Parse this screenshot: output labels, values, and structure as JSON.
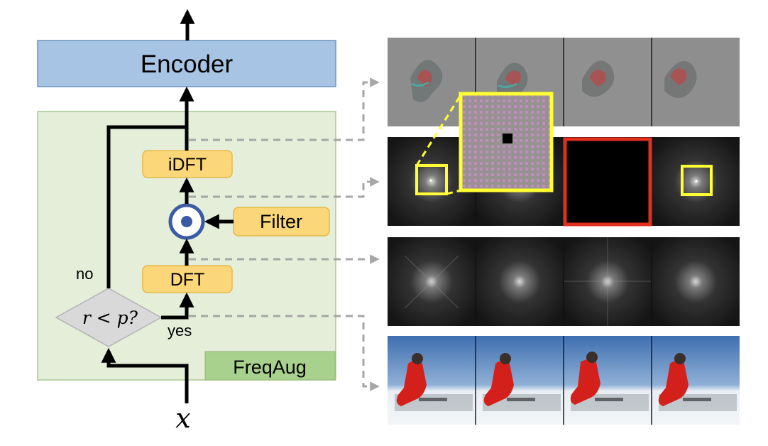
{
  "labels": {
    "encoder": "Encoder",
    "freqaug": "FreqAug",
    "idft": "iDFT",
    "dft": "DFT",
    "filter": "Filter",
    "condition": "r < p?",
    "no": "no",
    "yes": "yes",
    "input": "x"
  },
  "colors": {
    "encoder_fill": "#a7c4e4",
    "encoder_stroke": "#6f93bf",
    "freqaug_fill": "#e4eed9",
    "freqaug_stroke": "#a9c98d",
    "freqaug_tag_fill": "#a9d18e",
    "op_box_fill": "#fbd77a",
    "op_box_stroke": "#e7b84a",
    "diamond_fill": "#d9d9d9",
    "multiply_ring": "#3b5ba5",
    "highlight_yellow": "#ffff33",
    "highlight_red": "#e0301e",
    "dashed_arrow": "#a6a6a6"
  },
  "image_rows": [
    {
      "name": "reconstructed-frames",
      "frames": 4
    },
    {
      "name": "filtered-spectrum-frames",
      "frames": 4
    },
    {
      "name": "spectrum-frames",
      "frames": 4
    },
    {
      "name": "input-frames",
      "frames": 4
    }
  ]
}
